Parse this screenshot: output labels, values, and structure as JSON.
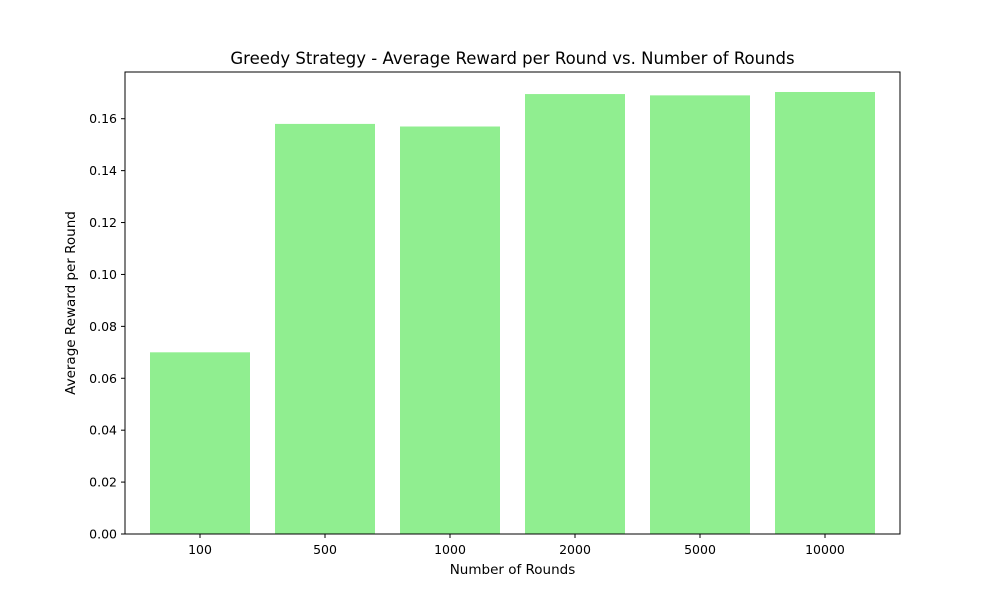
{
  "chart_data": {
    "type": "bar",
    "title": "Greedy Strategy - Average Reward per Round vs. Number of Rounds",
    "xlabel": "Number of Rounds",
    "ylabel": "Average Reward per Round",
    "categories": [
      "100",
      "500",
      "1000",
      "2000",
      "5000",
      "10000"
    ],
    "values": [
      0.07,
      0.158,
      0.157,
      0.1695,
      0.169,
      0.1703
    ],
    "ylim": [
      0,
      0.178
    ],
    "yticks": [
      0.0,
      0.02,
      0.04,
      0.06,
      0.08,
      0.1,
      0.12,
      0.14,
      0.16
    ],
    "ytick_labels": [
      "0.00",
      "0.02",
      "0.04",
      "0.06",
      "0.08",
      "0.10",
      "0.12",
      "0.14",
      "0.16"
    ],
    "bar_color": "#90ee90",
    "grid": false,
    "legend": "none"
  }
}
